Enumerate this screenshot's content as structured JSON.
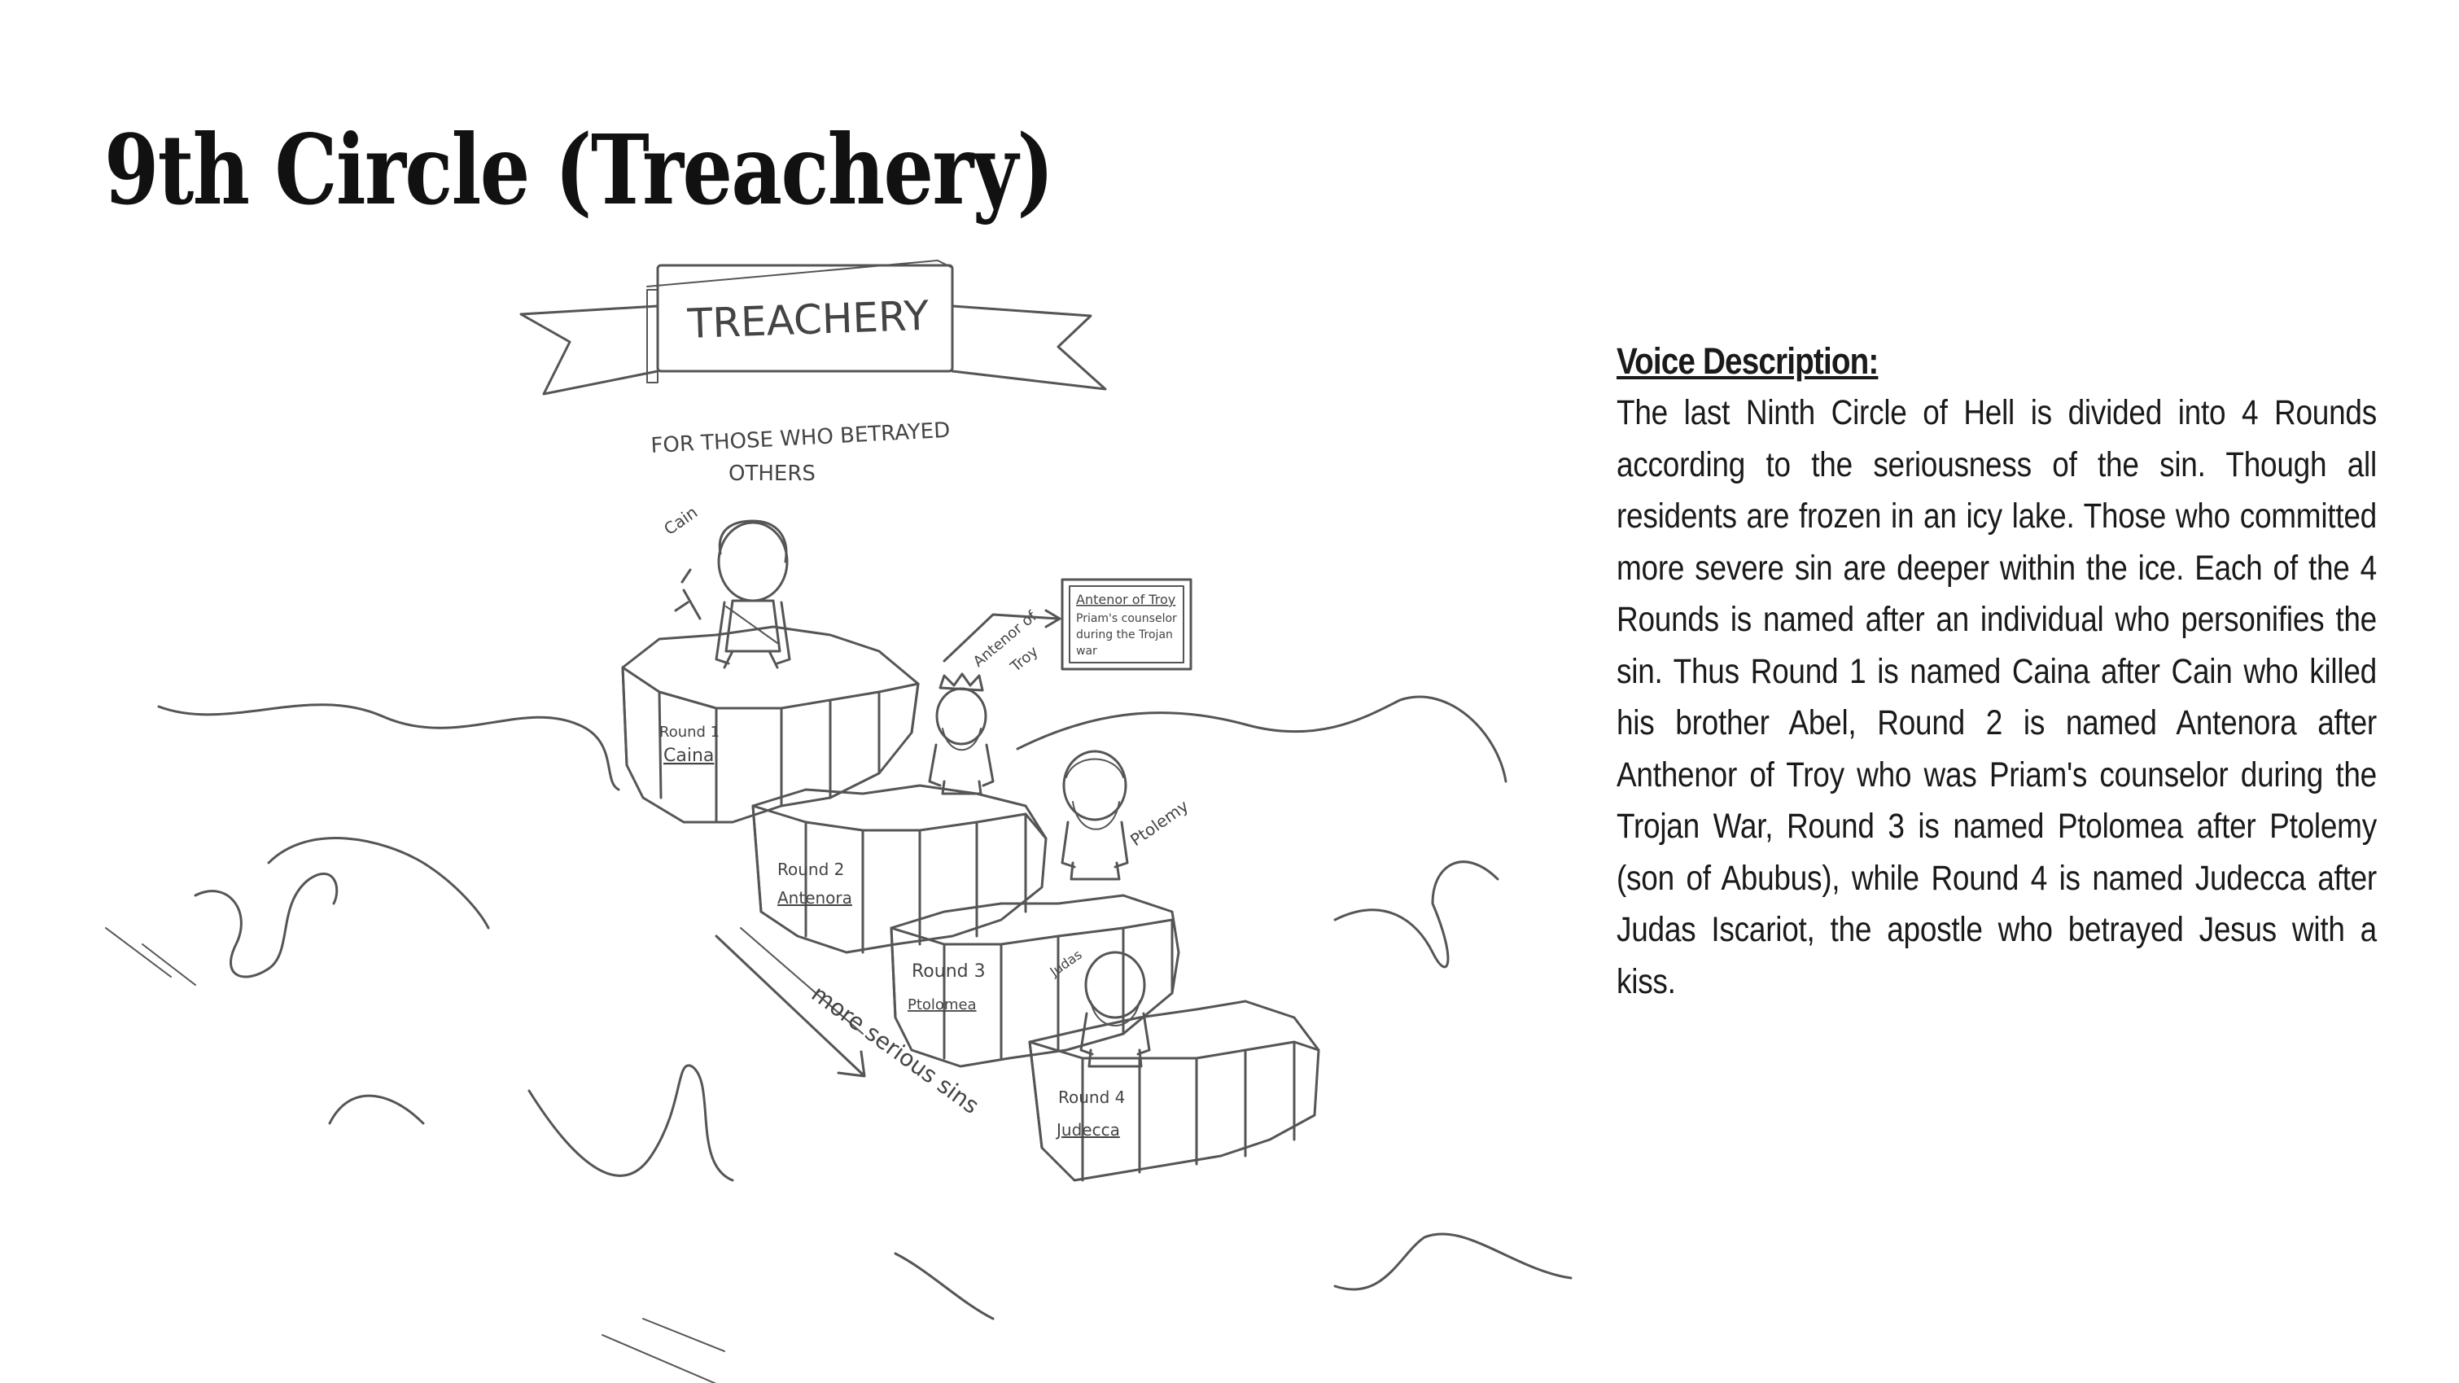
{
  "slide": {
    "title": "9th Circle (Treachery)"
  },
  "illustration": {
    "banner_text": "TREACHERY",
    "subtitle_line1": "FOR THOSE WHO BETRAYED",
    "subtitle_line2": "OTHERS",
    "cain_label": "Cain",
    "antenor_label_line1": "Antenor of",
    "antenor_label_line2": "Troy",
    "ptolemy_label": "Ptolemy",
    "judas_label": "Judas",
    "antenor_box_title": "Antenor of Troy",
    "antenor_box_line1": "Priam's counselor",
    "antenor_box_line2": "during the Trojan",
    "antenor_box_line3": "war",
    "round1_label": "Round 1",
    "round1_name": "Caina",
    "round2_label": "Round 2",
    "round2_name": "Antenora",
    "round3_label": "Round 3",
    "round3_name": "Ptolomea",
    "round4_label": "Round 4",
    "round4_name": "Judecca",
    "arrow_label": "more serious sins"
  },
  "voice": {
    "heading": "Voice Description:",
    "body": "The last Ninth Circle of Hell is divided into 4 Rounds according to the seriousness of the sin. Though all residents are frozen in an icy lake. Those who committed more severe sin are deeper within the ice. Each of the 4 Rounds is named after an individual who personifies the sin. Thus Round 1 is named Caina after Cain who killed his brother Abel, Round 2 is named Antenora after Anthenor of Troy who was Priam's counselor during the Trojan War, Round 3 is named Ptolomea after Ptolemy (son of Abubus), while Round 4 is named Judecca after Judas Iscariot, the apostle who betrayed Jesus with a kiss."
  }
}
